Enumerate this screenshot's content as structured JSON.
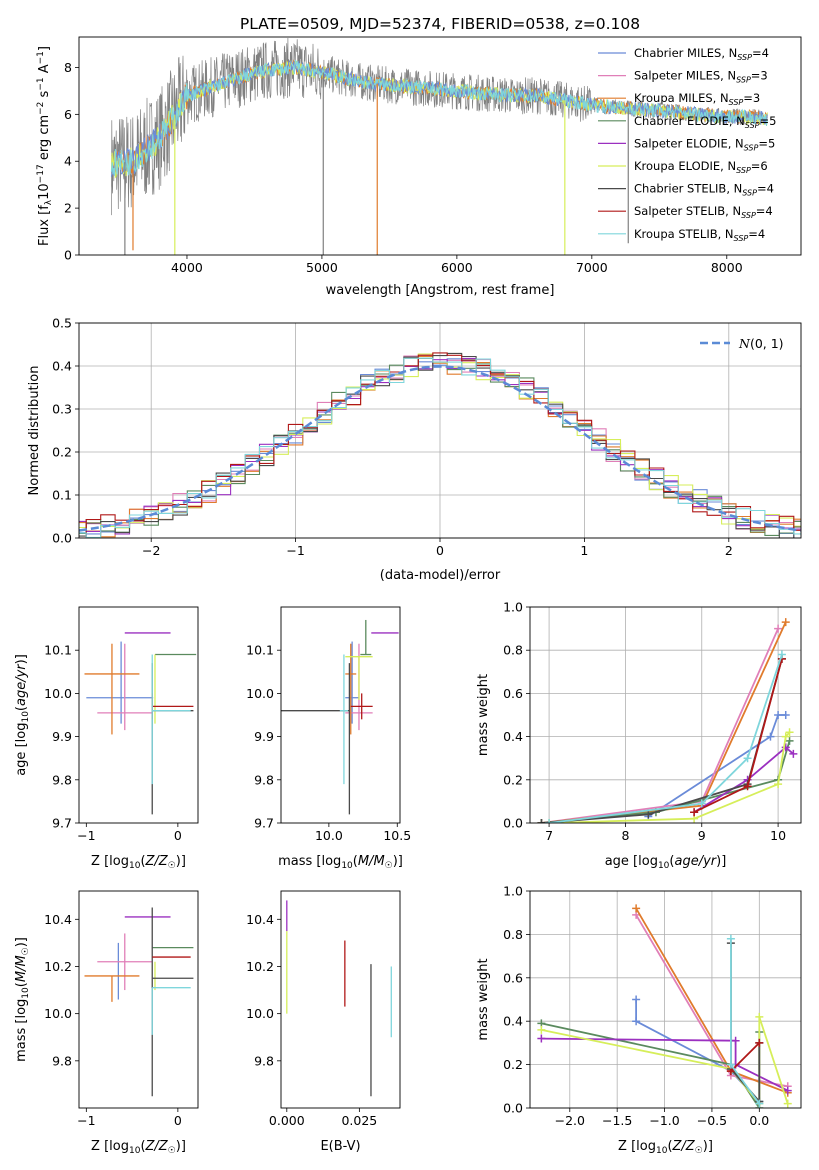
{
  "figure": {
    "title": "PLATE=0509, MJD=52374, FIBERID=0538, z=0.108"
  },
  "palette": {
    "chabrier_miles": "#6a8bd8",
    "salpeter_miles": "#e07fb8",
    "kroupa_miles": "#e07b2c",
    "chabrier_elodie": "#5a8a5e",
    "salpeter_elodie": "#9b30c0",
    "kroupa_elodie": "#d6ee5a",
    "chabrier_stelib": "#4a4a4a",
    "salpeter_stelib": "#b01818",
    "kroupa_stelib": "#7fd6dc",
    "data": "#808080",
    "gauss": "#5b8bd6"
  },
  "legend_spectrum": [
    {
      "label": "Chabrier MILES, N",
      "sub": "SSP",
      "tail": "=4",
      "color": "#6a8bd8"
    },
    {
      "label": "Salpeter MILES, N",
      "sub": "SSP",
      "tail": "=3",
      "color": "#e07fb8"
    },
    {
      "label": "Kroupa MILES, N",
      "sub": "SSP",
      "tail": "=3",
      "color": "#e07b2c"
    },
    {
      "label": "Chabrier ELODIE, N",
      "sub": "SSP",
      "tail": "=5",
      "color": "#5a8a5e"
    },
    {
      "label": "Salpeter ELODIE, N",
      "sub": "SSP",
      "tail": "=5",
      "color": "#9b30c0"
    },
    {
      "label": "Kroupa ELODIE, N",
      "sub": "SSP",
      "tail": "=6",
      "color": "#d6ee5a"
    },
    {
      "label": "Chabrier STELIB, N",
      "sub": "SSP",
      "tail": "=4",
      "color": "#4a4a4a"
    },
    {
      "label": "Salpeter STELIB, N",
      "sub": "SSP",
      "tail": "=4",
      "color": "#b01818"
    },
    {
      "label": "Kroupa STELIB, N",
      "sub": "SSP",
      "tail": "=4",
      "color": "#7fd6dc"
    }
  ],
  "chart_data": [
    {
      "id": "spectrum",
      "type": "line",
      "xlabel": "wavelength [Angstrom, rest frame]",
      "ylabel": "Flux [f_λ 10^-17 erg cm^-2 s^-1 A^-1]",
      "xlim": [
        3200,
        8550
      ],
      "ylim": [
        0,
        9.3
      ],
      "xticks": [
        4000,
        5000,
        6000,
        7000,
        8000
      ],
      "yticks": [
        0,
        2,
        4,
        6,
        8
      ],
      "continuum_x": [
        3450,
        3600,
        3800,
        4000,
        4200,
        4400,
        4600,
        4800,
        5000,
        5200,
        5400,
        5600,
        5800,
        6000,
        6200,
        6400,
        6600,
        6800,
        7000,
        7200,
        7400,
        7600,
        7800,
        8000,
        8200,
        8300
      ],
      "continuum_y": [
        3.9,
        4.0,
        5.0,
        6.8,
        7.2,
        7.6,
        7.9,
        8.0,
        7.8,
        7.5,
        7.3,
        7.2,
        7.1,
        7.0,
        6.9,
        6.8,
        6.8,
        6.6,
        6.4,
        6.3,
        6.2,
        6.1,
        6.0,
        5.9,
        5.9,
        5.8
      ],
      "dips": [
        {
          "x": 3540,
          "y": 0.0,
          "series": "data"
        },
        {
          "x": 3600,
          "y": 0.2,
          "series": "kroupa_miles"
        },
        {
          "x": 3910,
          "y": 0.0,
          "series": "kroupa_elodie"
        },
        {
          "x": 5010,
          "y": 0.0,
          "series": "data"
        },
        {
          "x": 5410,
          "y": 0.0,
          "series": "kroupa_miles"
        },
        {
          "x": 6800,
          "y": 0.0,
          "series": "kroupa_elodie"
        },
        {
          "x": 7270,
          "y": 0.5,
          "series": "data"
        }
      ]
    },
    {
      "id": "residuals",
      "type": "histogram",
      "xlabel": "(data-model)/error",
      "ylabel": "Normed distribution",
      "xlim": [
        -2.5,
        2.5
      ],
      "ylim": [
        0,
        0.5
      ],
      "xticks": [
        -2,
        -1,
        0,
        1,
        2
      ],
      "yticks": [
        0.0,
        0.1,
        0.2,
        0.3,
        0.4,
        0.5
      ],
      "bin_width": 0.1,
      "gaussian_label": "N(0,1)",
      "series_keys": [
        "chabrier_miles",
        "salpeter_miles",
        "kroupa_miles",
        "chabrier_elodie",
        "salpeter_elodie",
        "kroupa_elodie",
        "chabrier_stelib",
        "salpeter_stelib",
        "kroupa_stelib"
      ]
    },
    {
      "id": "age_vs_Z",
      "type": "errorbar",
      "xlabel": "Z [log10(Z/Z☉)]",
      "ylabel": "age [log10(age/yr)]",
      "xlim": [
        -1.08,
        0.22
      ],
      "ylim": [
        9.7,
        10.2
      ],
      "xticks": [
        -1,
        0
      ],
      "yticks": [
        9.7,
        9.8,
        9.9,
        10.0,
        10.1
      ],
      "points": [
        {
          "s": "chabrier_miles",
          "x": -0.62,
          "xerr": [
            0.38,
            0.35
          ],
          "y": 9.99,
          "yerr": [
            0.06,
            0.13
          ]
        },
        {
          "s": "salpeter_miles",
          "x": -0.58,
          "xerr": [
            0.3,
            0.3
          ],
          "y": 9.955,
          "yerr": [
            0.04,
            0.16
          ]
        },
        {
          "s": "kroupa_miles",
          "x": -0.72,
          "xerr": [
            0.3,
            0.3
          ],
          "y": 10.045,
          "yerr": [
            0.14,
            0.07
          ]
        },
        {
          "s": "chabrier_elodie",
          "x": -0.25,
          "xerr": [
            0.0,
            0.45
          ],
          "y": 10.09,
          "yerr": [
            0.0,
            0.0
          ]
        },
        {
          "s": "salpeter_elodie",
          "x": -0.28,
          "xerr": [
            0.3,
            0.2
          ],
          "y": 10.14,
          "yerr": [
            0.0,
            0.0
          ]
        },
        {
          "s": "kroupa_elodie",
          "x": -0.25,
          "xerr": [
            0.0,
            0.0
          ],
          "y": 10.09,
          "yerr": [
            0.16,
            0.0
          ]
        },
        {
          "s": "chabrier_stelib",
          "x": -0.28,
          "xerr": [
            0.0,
            0.45
          ],
          "y": 9.96,
          "yerr": [
            0.24,
            0.11
          ]
        },
        {
          "s": "salpeter_stelib",
          "x": -0.28,
          "xerr": [
            0.0,
            0.45
          ],
          "y": 9.97,
          "yerr": [
            0.03,
            0.03
          ]
        },
        {
          "s": "kroupa_stelib",
          "x": -0.28,
          "xerr": [
            0.0,
            0.42
          ],
          "y": 9.96,
          "yerr": [
            0.17,
            0.13
          ]
        }
      ]
    },
    {
      "id": "age_vs_mass",
      "type": "errorbar",
      "xlabel": "mass [log10(M/M☉)]",
      "ylabel": "",
      "xlim": [
        9.65,
        10.52
      ],
      "ylim": [
        9.7,
        10.2
      ],
      "xticks": [
        10.0,
        10.5
      ],
      "yticks": [
        9.7,
        9.8,
        9.9,
        10.0,
        10.1
      ],
      "points": [
        {
          "s": "chabrier_miles",
          "x": 10.17,
          "xerr": [
            0.05,
            0.05
          ],
          "y": 9.99,
          "yerr": [
            0.06,
            0.13
          ]
        },
        {
          "s": "salpeter_miles",
          "x": 10.22,
          "xerr": [
            0.1,
            0.1
          ],
          "y": 9.955,
          "yerr": [
            0.04,
            0.16
          ]
        },
        {
          "s": "kroupa_miles",
          "x": 10.16,
          "xerr": [
            0.04,
            0.04
          ],
          "y": 10.045,
          "yerr": [
            0.14,
            0.07
          ]
        },
        {
          "s": "chabrier_elodie",
          "x": 10.27,
          "xerr": [
            0.04,
            0.04
          ],
          "y": 10.09,
          "yerr": [
            0.0,
            0.08
          ]
        },
        {
          "s": "salpeter_elodie",
          "x": 10.41,
          "xerr": [
            0.1,
            0.1
          ],
          "y": 10.14,
          "yerr": [
            0.0,
            0.0
          ]
        },
        {
          "s": "kroupa_elodie",
          "x": 10.22,
          "xerr": [
            0.1,
            0.1
          ],
          "y": 10.085,
          "yerr": [
            0.1,
            0.0
          ]
        },
        {
          "s": "chabrier_stelib",
          "x": 10.15,
          "xerr": [
            0.5,
            0.0
          ],
          "y": 9.96,
          "yerr": [
            0.24,
            0.11
          ]
        },
        {
          "s": "salpeter_stelib",
          "x": 10.24,
          "xerr": [
            0.08,
            0.08
          ],
          "y": 9.97,
          "yerr": [
            0.03,
            0.03
          ]
        },
        {
          "s": "kroupa_stelib",
          "x": 10.11,
          "xerr": [
            0.03,
            0.03
          ],
          "y": 9.96,
          "yerr": [
            0.17,
            0.13
          ]
        }
      ]
    },
    {
      "id": "mw_vs_age",
      "type": "line",
      "xlabel": "age [log10(age/yr)]",
      "ylabel": "mass weight",
      "xlim": [
        6.75,
        10.3
      ],
      "ylim": [
        0,
        1.0
      ],
      "xticks": [
        7,
        8,
        9,
        10
      ],
      "yticks": [
        0.0,
        0.2,
        0.4,
        0.6,
        0.8,
        1.0
      ],
      "series": [
        {
          "s": "chabrier_miles",
          "x": [
            8.3,
            9.9,
            10.0,
            10.1
          ],
          "y": [
            0.03,
            0.4,
            0.5,
            0.5
          ]
        },
        {
          "s": "salpeter_miles",
          "x": [
            6.9,
            9.0,
            10.0
          ],
          "y": [
            0.0,
            0.1,
            0.9
          ]
        },
        {
          "s": "kroupa_miles",
          "x": [
            6.9,
            9.0,
            10.1
          ],
          "y": [
            0.0,
            0.08,
            0.93
          ]
        },
        {
          "s": "chabrier_elodie",
          "x": [
            6.9,
            8.4,
            10.0,
            10.15
          ],
          "y": [
            0.0,
            0.05,
            0.2,
            0.38
          ]
        },
        {
          "s": "salpeter_elodie",
          "x": [
            8.9,
            9.6,
            10.1,
            10.2
          ],
          "y": [
            0.05,
            0.2,
            0.35,
            0.32
          ]
        },
        {
          "s": "kroupa_elodie",
          "x": [
            7.0,
            8.9,
            10.0,
            10.1,
            10.15
          ],
          "y": [
            0.0,
            0.02,
            0.18,
            0.4,
            0.42
          ]
        },
        {
          "s": "chabrier_stelib",
          "x": [
            6.9,
            8.3,
            9.6,
            10.05
          ],
          "y": [
            0.0,
            0.04,
            0.18,
            0.76
          ]
        },
        {
          "s": "salpeter_stelib",
          "x": [
            8.9,
            9.6,
            10.05
          ],
          "y": [
            0.05,
            0.17,
            0.76
          ]
        },
        {
          "s": "kroupa_stelib",
          "x": [
            7.0,
            9.0,
            9.6,
            10.05
          ],
          "y": [
            0.0,
            0.09,
            0.3,
            0.78
          ]
        }
      ]
    },
    {
      "id": "mass_vs_Z",
      "type": "errorbar",
      "xlabel": "Z [log10(Z/Z☉)]",
      "ylabel": "mass [log10(M/M☉)]",
      "xlim": [
        -1.08,
        0.22
      ],
      "ylim": [
        9.6,
        10.52
      ],
      "xticks": [
        -1,
        0
      ],
      "yticks": [
        9.8,
        10.0,
        10.2,
        10.4
      ],
      "points": [
        {
          "s": "chabrier_miles",
          "x": -0.65,
          "xerr": [
            0.0,
            0.0
          ],
          "y": 10.16,
          "yerr": [
            0.1,
            0.14
          ]
        },
        {
          "s": "salpeter_miles",
          "x": -0.58,
          "xerr": [
            0.3,
            0.3
          ],
          "y": 10.22,
          "yerr": [
            0.12,
            0.12
          ]
        },
        {
          "s": "kroupa_miles",
          "x": -0.72,
          "xerr": [
            0.3,
            0.3
          ],
          "y": 10.16,
          "yerr": [
            0.11,
            0.0
          ]
        },
        {
          "s": "chabrier_elodie",
          "x": -0.28,
          "xerr": [
            0.0,
            0.45
          ],
          "y": 10.28,
          "yerr": [
            0.0,
            0.0
          ]
        },
        {
          "s": "salpeter_elodie",
          "x": -0.28,
          "xerr": [
            0.3,
            0.2
          ],
          "y": 10.41,
          "yerr": [
            0.0,
            0.0
          ]
        },
        {
          "s": "kroupa_elodie",
          "x": -0.25,
          "xerr": [
            0.0,
            0.0
          ],
          "y": 10.22,
          "yerr": [
            0.12,
            0.0
          ]
        },
        {
          "s": "chabrier_stelib",
          "x": -0.28,
          "xerr": [
            0.0,
            0.45
          ],
          "y": 10.15,
          "yerr": [
            0.5,
            0.3
          ]
        },
        {
          "s": "salpeter_stelib",
          "x": -0.28,
          "xerr": [
            0.0,
            0.42
          ],
          "y": 10.24,
          "yerr": [
            0.0,
            0.0
          ]
        },
        {
          "s": "kroupa_stelib",
          "x": -0.28,
          "xerr": [
            0.0,
            0.42
          ],
          "y": 10.11,
          "yerr": [
            0.2,
            0.0
          ]
        }
      ]
    },
    {
      "id": "mass_vs_ebv",
      "type": "errorbar",
      "xlabel": "E(B-V)",
      "ylabel": "",
      "xlim": [
        -0.002,
        0.039
      ],
      "ylim": [
        9.6,
        10.52
      ],
      "xticks": [
        0.0,
        0.025
      ],
      "xtick_labels": [
        "0.000",
        "0.025"
      ],
      "yticks": [
        9.8,
        10.0,
        10.2,
        10.4
      ],
      "points": [
        {
          "s": "salpeter_elodie",
          "x": 0.0,
          "y": 10.45,
          "yerr": [
            0.1,
            0.03
          ]
        },
        {
          "s": "kroupa_elodie",
          "x": 0.0,
          "y": 10.2,
          "yerr": [
            0.2,
            0.15
          ]
        },
        {
          "s": "salpeter_stelib",
          "x": 0.02,
          "y": 10.17,
          "yerr": [
            0.14,
            0.14
          ]
        },
        {
          "s": "chabrier_stelib",
          "x": 0.029,
          "y": 9.93,
          "yerr": [
            0.28,
            0.28
          ]
        },
        {
          "s": "kroupa_stelib",
          "x": 0.036,
          "y": 10.05,
          "yerr": [
            0.15,
            0.15
          ]
        }
      ]
    },
    {
      "id": "mw_vs_Z",
      "type": "line",
      "xlabel": "Z [log10(Z/Z☉)]",
      "ylabel": "mass weight",
      "xlim": [
        -2.42,
        0.44
      ],
      "ylim": [
        0,
        1.0
      ],
      "xticks": [
        -2.0,
        -1.5,
        -1.0,
        -0.5,
        0.0
      ],
      "yticks": [
        0.0,
        0.2,
        0.4,
        0.6,
        0.8,
        1.0
      ],
      "series": [
        {
          "s": "chabrier_miles",
          "x": [
            -1.3,
            -1.3,
            -0.3,
            0.0
          ],
          "y": [
            0.5,
            0.4,
            0.17,
            0.03
          ]
        },
        {
          "s": "salpeter_miles",
          "x": [
            -1.3,
            -0.3,
            0.3
          ],
          "y": [
            0.89,
            0.15,
            0.1
          ]
        },
        {
          "s": "kroupa_miles",
          "x": [
            -1.3,
            -0.3,
            0.3
          ],
          "y": [
            0.92,
            0.17,
            0.07
          ]
        },
        {
          "s": "chabrier_elodie",
          "x": [
            -2.3,
            -0.3,
            0.0,
            0.0
          ],
          "y": [
            0.39,
            0.2,
            0.0,
            0.35
          ]
        },
        {
          "s": "salpeter_elodie",
          "x": [
            -2.3,
            -0.25,
            -0.25,
            0.3
          ],
          "y": [
            0.32,
            0.31,
            0.2,
            0.08
          ]
        },
        {
          "s": "kroupa_elodie",
          "x": [
            -2.3,
            -0.3,
            0.0,
            0.0,
            0.3
          ],
          "y": [
            0.36,
            0.18,
            0.02,
            0.42,
            0.02
          ]
        },
        {
          "s": "chabrier_stelib",
          "x": [
            -0.3,
            -0.3,
            0.0,
            0.0
          ],
          "y": [
            0.76,
            0.18,
            0.03,
            0.3
          ]
        },
        {
          "s": "salpeter_stelib",
          "x": [
            -0.3,
            0.0
          ],
          "y": [
            0.17,
            0.3
          ]
        },
        {
          "s": "kroupa_stelib",
          "x": [
            -0.3,
            -0.3,
            0.0
          ],
          "y": [
            0.78,
            0.2,
            0.02
          ]
        }
      ]
    }
  ]
}
